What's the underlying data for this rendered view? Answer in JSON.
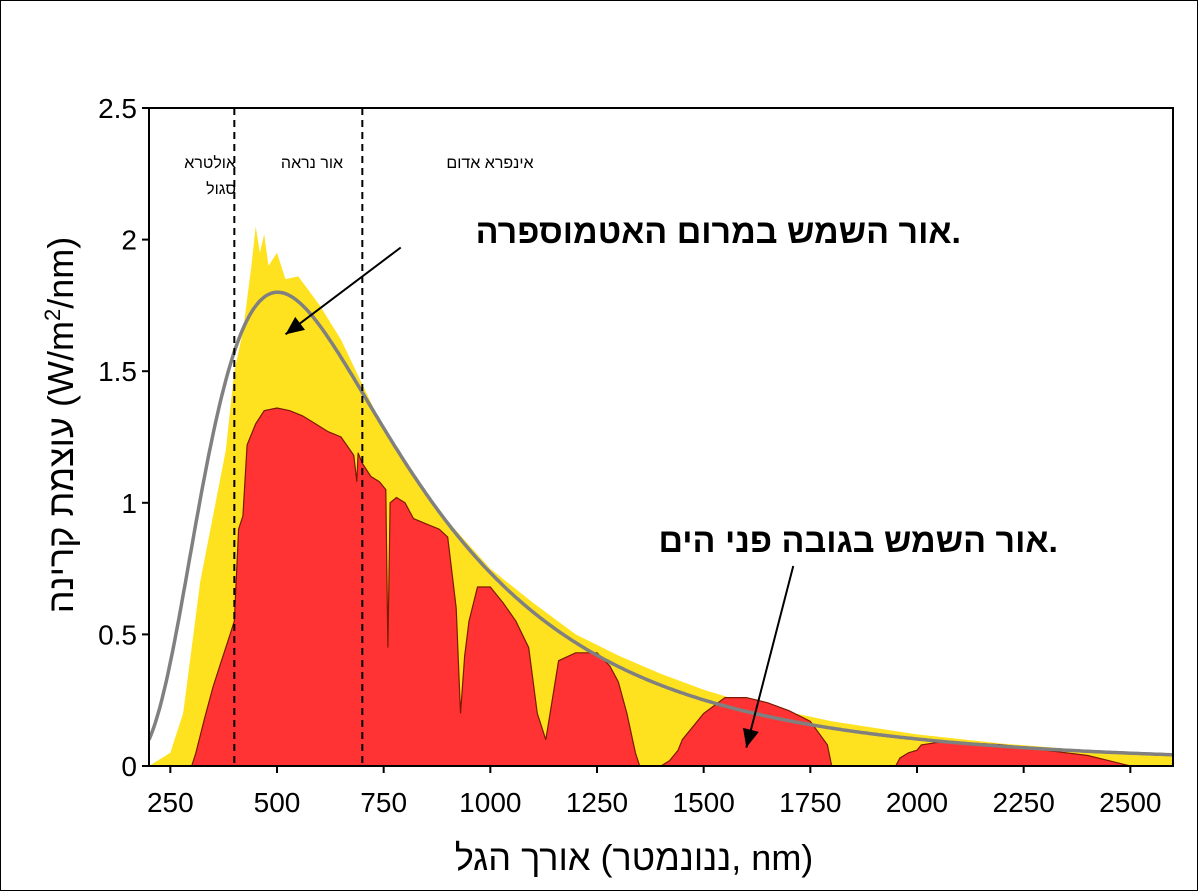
{
  "chart_data": {
    "type": "area",
    "xlabel": "אורך הגל (ננונמטר, nm)",
    "ylabel_main": "עוצמת קרינה",
    "ylabel_units_pre": "(W/m",
    "ylabel_units_sup": "2",
    "ylabel_units_post": "/nm)",
    "xlim": [
      200,
      2600
    ],
    "ylim": [
      0,
      2.5
    ],
    "x_ticks": [
      250,
      500,
      750,
      1000,
      1250,
      1500,
      1750,
      2000,
      2250,
      2500
    ],
    "x_tick_labels": [
      "250",
      "500",
      "750",
      "1000",
      "1250",
      "1500",
      "1750",
      "2000",
      "2250",
      "2500"
    ],
    "y_ticks": [
      0,
      0.5,
      1,
      1.5,
      2,
      2.5
    ],
    "y_tick_labels": [
      "0",
      "0.5",
      "1",
      "1.5",
      "2",
      "2.5"
    ],
    "grid": false,
    "regions": [
      {
        "boundary_x": 400
      },
      {
        "boundary_x": 700
      }
    ],
    "region_labels": [
      "אולטרא סגול",
      "אור נראה",
      "אינפרא אדום"
    ],
    "annotations": [
      {
        "text": "אור השמש במרום האטמוספרה.",
        "arrow_to": [
          520,
          1.64
        ],
        "arrow_from": [
          790,
          1.97
        ]
      },
      {
        "text": "אור השמש בגובה פני הים.",
        "arrow_to": [
          1600,
          0.07
        ],
        "arrow_from": [
          1710,
          0.76
        ]
      }
    ],
    "series": [
      {
        "role": "blackbody",
        "color": "#808080",
        "temperature_k": 5778,
        "peak": [
          520,
          1.8
        ]
      },
      {
        "role": "top_of_atmosphere",
        "color": "#ffe21f",
        "x": [
          200,
          250,
          280,
          300,
          320,
          350,
          380,
          400,
          420,
          440,
          450,
          460,
          470,
          480,
          500,
          520,
          550,
          600,
          650,
          700,
          750,
          800,
          900,
          1000,
          1100,
          1200,
          1300,
          1400,
          1500,
          1600,
          1800,
          2000,
          2200,
          2400,
          2600
        ],
        "y": [
          0,
          0.05,
          0.2,
          0.45,
          0.7,
          0.95,
          1.2,
          1.5,
          1.65,
          1.9,
          2.05,
          1.95,
          2.02,
          1.9,
          1.95,
          1.85,
          1.86,
          1.75,
          1.62,
          1.45,
          1.28,
          1.15,
          0.93,
          0.75,
          0.62,
          0.5,
          0.42,
          0.35,
          0.29,
          0.24,
          0.17,
          0.12,
          0.085,
          0.06,
          0.045
        ]
      },
      {
        "role": "sea_level",
        "color": "#ff3333",
        "x": [
          300,
          310,
          330,
          350,
          370,
          390,
          400,
          410,
          420,
          430,
          450,
          470,
          500,
          530,
          560,
          590,
          620,
          650,
          680,
          687,
          690,
          700,
          720,
          740,
          755,
          760,
          765,
          780,
          800,
          820,
          850,
          880,
          900,
          920,
          930,
          940,
          950,
          970,
          1000,
          1030,
          1060,
          1090,
          1110,
          1130,
          1140,
          1160,
          1200,
          1250,
          1280,
          1300,
          1320,
          1340,
          1350,
          1360,
          1400,
          1420,
          1440,
          1450,
          1500,
          1550,
          1600,
          1650,
          1700,
          1750,
          1790,
          1800,
          1810,
          1950,
          1960,
          1980,
          2000,
          2010,
          2050,
          2100,
          2200,
          2300,
          2400,
          2450,
          2500
        ],
        "y": [
          0,
          0.05,
          0.18,
          0.3,
          0.4,
          0.5,
          0.55,
          0.9,
          0.95,
          1.22,
          1.3,
          1.35,
          1.36,
          1.35,
          1.33,
          1.3,
          1.27,
          1.25,
          1.18,
          1.08,
          1.19,
          1.15,
          1.1,
          1.08,
          1.05,
          0.45,
          1.0,
          1.02,
          1.0,
          0.94,
          0.92,
          0.9,
          0.87,
          0.6,
          0.2,
          0.42,
          0.55,
          0.68,
          0.68,
          0.62,
          0.55,
          0.45,
          0.2,
          0.1,
          0.2,
          0.4,
          0.43,
          0.43,
          0.38,
          0.32,
          0.2,
          0.05,
          0,
          0,
          0,
          0.02,
          0.06,
          0.1,
          0.2,
          0.26,
          0.26,
          0.24,
          0.21,
          0.17,
          0.08,
          0,
          0,
          0,
          0.03,
          0.05,
          0.06,
          0.08,
          0.09,
          0.09,
          0.08,
          0.06,
          0.04,
          0.02,
          0
        ]
      }
    ]
  }
}
